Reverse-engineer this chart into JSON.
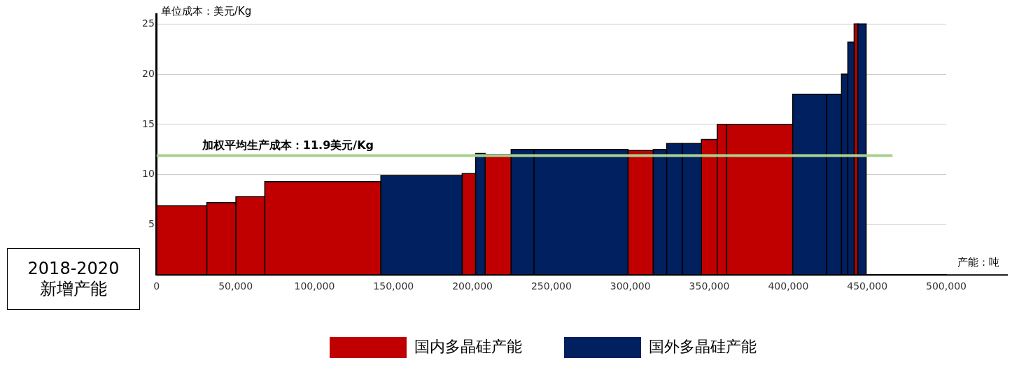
{
  "chart_data": {
    "type": "histogram",
    "ylabel": "单位成本：美元/Kg",
    "xlabel": "产能：吨",
    "bins": [
      0,
      31800,
      50200,
      68500,
      142000,
      193500,
      202000,
      208000,
      224500,
      239000,
      298500,
      314500,
      323000,
      333000,
      345000,
      355000,
      361000,
      402800,
      424300,
      433700,
      437700,
      441700,
      444000,
      449300
    ],
    "series": [
      {
        "name": "国内多晶硅产能",
        "color": "#c00000",
        "values": [
          6.9,
          7.2,
          7.8,
          9.3,
          null,
          10.1,
          null,
          12.0,
          null,
          null,
          12.4,
          null,
          null,
          null,
          13.5,
          15,
          15,
          null,
          null,
          null,
          null,
          25,
          null
        ]
      },
      {
        "name": "国外多晶硅产能",
        "color": "#002060",
        "values": [
          null,
          null,
          null,
          null,
          9.9,
          null,
          12.1,
          null,
          12.5,
          12.5,
          null,
          12.5,
          13.1,
          13.1,
          null,
          null,
          null,
          18,
          18,
          20,
          23.2,
          null,
          25
        ]
      }
    ],
    "xlim": [
      0,
      500000
    ],
    "xticks": [
      0,
      {
        "value": 50000,
        "label": "50,000"
      },
      {
        "value": 100000,
        "label": "100,000"
      },
      {
        "value": 150000,
        "label": "150,000"
      },
      {
        "value": 200000,
        "label": "200,000"
      },
      {
        "value": 250000,
        "label": "250,000"
      },
      {
        "value": 300000,
        "label": "300,000"
      },
      {
        "value": 350000,
        "label": "350,000"
      },
      {
        "value": 400000,
        "label": "400,000"
      },
      {
        "value": 450000,
        "label": "450,000"
      },
      {
        "value": 500000,
        "label": "500,000"
      }
    ],
    "ylim": [
      0,
      26
    ],
    "yticks": [
      5,
      10,
      15,
      20,
      25
    ],
    "ref_lines": [
      {
        "axis": "y",
        "value": 11.9,
        "label": "加权平均生产成本：11.9美元/Kg",
        "color": "#a9d18e"
      }
    ],
    "annotations": [
      "2018-2020 新增产能"
    ],
    "grid": "y",
    "legend": "bottom"
  }
}
